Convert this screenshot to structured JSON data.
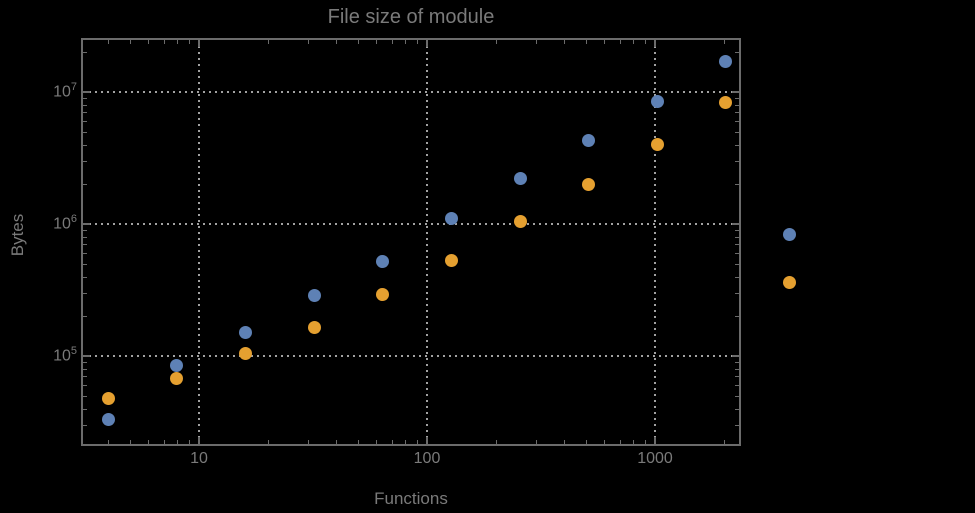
{
  "title": "File size of module",
  "colors": {
    "background": "#000000",
    "frame": "#6b6b6b",
    "grid": "#a2a2a2",
    "text": "#7a7a7a",
    "series1": "#5e81b5",
    "series2": "#e5a030"
  },
  "axes": {
    "x": {
      "title": "Functions",
      "scale": "log",
      "major_ticks": [
        {
          "value": 10,
          "label": "10"
        },
        {
          "value": 100,
          "label": "100"
        },
        {
          "value": 1000,
          "label": "1000"
        }
      ]
    },
    "y": {
      "title": "Bytes",
      "scale": "log",
      "major_ticks": [
        {
          "value": 100000,
          "base": "10",
          "exp": "5"
        },
        {
          "value": 1000000,
          "base": "10",
          "exp": "6"
        },
        {
          "value": 10000000,
          "base": "10",
          "exp": "7"
        }
      ]
    }
  },
  "chart_data": {
    "type": "scatter",
    "title": "File size of module",
    "xlabel": "Functions",
    "ylabel": "Bytes",
    "x_scale": "log",
    "y_scale": "log",
    "xlim": [
      3.1,
      2340
    ],
    "ylim": [
      21500,
      25000000
    ],
    "grid": "dotted",
    "x": [
      4,
      8,
      16,
      32,
      64,
      128,
      256,
      512,
      1024,
      2048
    ],
    "series": [
      {
        "name": "series-1",
        "color": "#5e81b5",
        "values": [
          33000,
          85000,
          150000,
          285000,
          520000,
          1100000,
          2200000,
          4300000,
          8500000,
          17000000
        ]
      },
      {
        "name": "series-2",
        "color": "#e5a030",
        "values": [
          48000,
          68000,
          105000,
          165000,
          290000,
          530000,
          1050000,
          2000000,
          4000000,
          8300000
        ]
      }
    ],
    "legend_markers": [
      {
        "series": "series-1",
        "color": "#5e81b5",
        "label": ""
      },
      {
        "series": "series-2",
        "color": "#e5a030",
        "label": ""
      }
    ]
  }
}
